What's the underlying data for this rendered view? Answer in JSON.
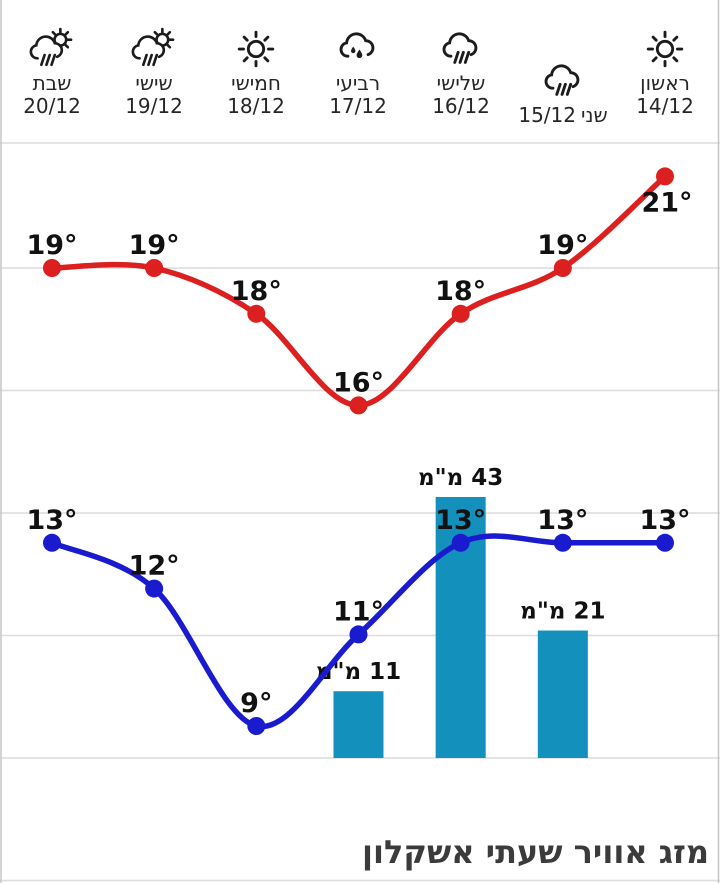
{
  "widget": {
    "title": "מזג אוויר שעתי אשקלון"
  },
  "header": {
    "days": [
      {
        "name": "ראשון",
        "date": "14/12",
        "icon": "sun"
      },
      {
        "name": "שני",
        "date": "15/12",
        "icon": "rain-cloud"
      },
      {
        "name": "שלישי",
        "date": "16/12",
        "icon": "rain-cloud"
      },
      {
        "name": "רביעי",
        "date": "17/12",
        "icon": "rain-drops-cloud"
      },
      {
        "name": "חמישי",
        "date": "18/12",
        "icon": "sun"
      },
      {
        "name": "שישי",
        "date": "19/12",
        "icon": "sun-rain-cloud"
      },
      {
        "name": "שבת",
        "date": "20/12",
        "icon": "sun-rain-cloud"
      }
    ]
  },
  "chart_data": {
    "type": "line",
    "direction": "rtl",
    "title": "",
    "xlabel": "",
    "ylabel": "",
    "grid": true,
    "legend": "none",
    "ylim": [
      8,
      22
    ],
    "categories": [
      "ראשון 14/12",
      "שני 15/12",
      "שלישי 16/12",
      "רביעי 17/12",
      "חמישי 18/12",
      "שישי 19/12",
      "שבת 20/12"
    ],
    "series": [
      {
        "name": "high-temp-c",
        "color": "#dc1f1f",
        "unit": "°",
        "values": [
          21,
          19,
          18,
          16,
          18,
          19,
          19
        ]
      },
      {
        "name": "low-temp-c",
        "color": "#1a1ace",
        "unit": "°",
        "values": [
          13,
          13,
          13,
          11,
          9,
          12,
          13
        ]
      }
    ],
    "bars": {
      "name": "precipitation-mm",
      "color": "#1390bb",
      "unit": "מ\"מ",
      "values": [
        null,
        21,
        43,
        11,
        null,
        null,
        null
      ]
    }
  }
}
